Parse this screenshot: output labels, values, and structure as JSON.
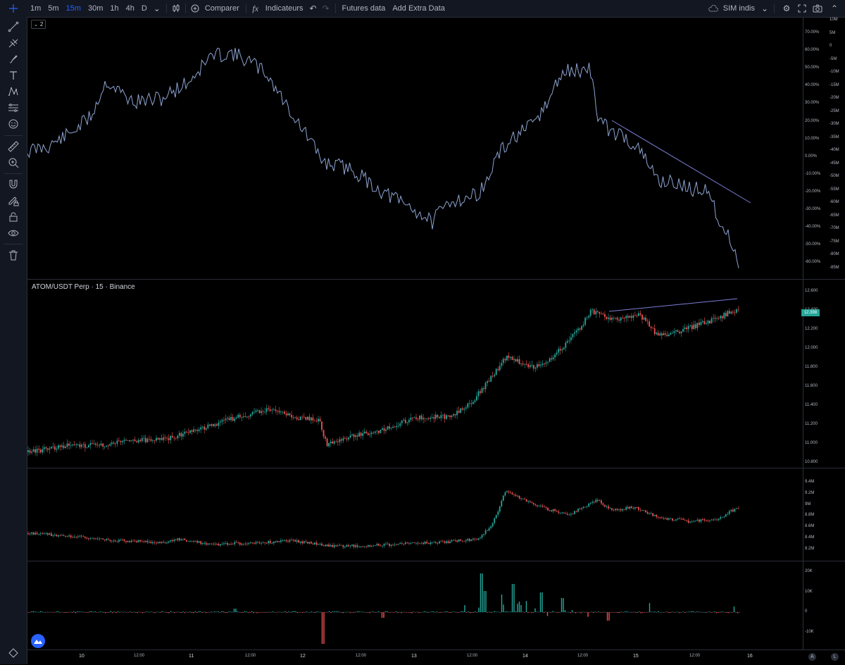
{
  "toolbar": {
    "intervals": [
      "1m",
      "5m",
      "15m",
      "30m",
      "1h",
      "4h",
      "D"
    ],
    "active_interval": "15m",
    "compare_label": "Comparer",
    "indicators_label": "Indicateurs",
    "futures_label": "Futures data",
    "extra_label": "Add Extra Data",
    "layout_label": "SIM indis"
  },
  "pane1": {
    "collapse_count": "2",
    "left_axis_ticks": [
      "70.00%",
      "60.00%",
      "50.00%",
      "40.00%",
      "30.00%",
      "20.00%",
      "10.00%",
      "0.00%",
      "-10.00%",
      "-20.00%",
      "-30.00%",
      "-40.00%",
      "-50.00%",
      "-60.00%"
    ],
    "right_axis_ticks": [
      "10M",
      "5M",
      "0",
      "-5M",
      "-10M",
      "-15M",
      "-20M",
      "-25M",
      "-30M",
      "-35M",
      "-40M",
      "-45M",
      "-50M",
      "-55M",
      "-60M",
      "-65M",
      "-70M",
      "-75M",
      "-80M",
      "-85M"
    ]
  },
  "pane2": {
    "legend": "ATOM/USDT Perp · 15 · Binance",
    "last_price": "12.398",
    "axis_ticks": [
      "12.600",
      "12.400",
      "12.200",
      "12.000",
      "11.800",
      "11.600",
      "11.400",
      "11.200",
      "11.000",
      "10.800"
    ]
  },
  "pane3": {
    "axis_ticks": [
      "9.4M",
      "9.2M",
      "9M",
      "8.8M",
      "8.6M",
      "8.4M",
      "8.2M"
    ]
  },
  "pane4": {
    "axis_ticks": [
      "20K",
      "10K",
      "0",
      "-10K"
    ]
  },
  "time_axis": {
    "labels": [
      {
        "text": "10",
        "day": true
      },
      {
        "text": "12:00",
        "day": false
      },
      {
        "text": "11",
        "day": true
      },
      {
        "text": "12:00",
        "day": false
      },
      {
        "text": "12",
        "day": true
      },
      {
        "text": "12:00",
        "day": false
      },
      {
        "text": "13",
        "day": true
      },
      {
        "text": "12:00",
        "day": false
      },
      {
        "text": "14",
        "day": true
      },
      {
        "text": "12:00",
        "day": false
      },
      {
        "text": "15",
        "day": true
      },
      {
        "text": "12:00",
        "day": false
      },
      {
        "text": "16",
        "day": true
      }
    ],
    "auto_scale_label": "A",
    "log_scale_label": "L"
  },
  "colors": {
    "up": "#26a69a",
    "down": "#ef5350",
    "line": "#8ea4d2",
    "trend": "#7b7fd6",
    "bg": "#000000",
    "panel": "#131722"
  },
  "icons": [
    "crosshair-icon",
    "trendline-icon",
    "pitchfork-icon",
    "brush-icon",
    "text-icon",
    "pattern-icon",
    "fib-icon",
    "emoji-icon",
    "ruler-icon",
    "zoom-icon",
    "magnet-icon",
    "lock-drawing-icon",
    "lock-icon",
    "eye-icon",
    "trash-icon"
  ]
}
